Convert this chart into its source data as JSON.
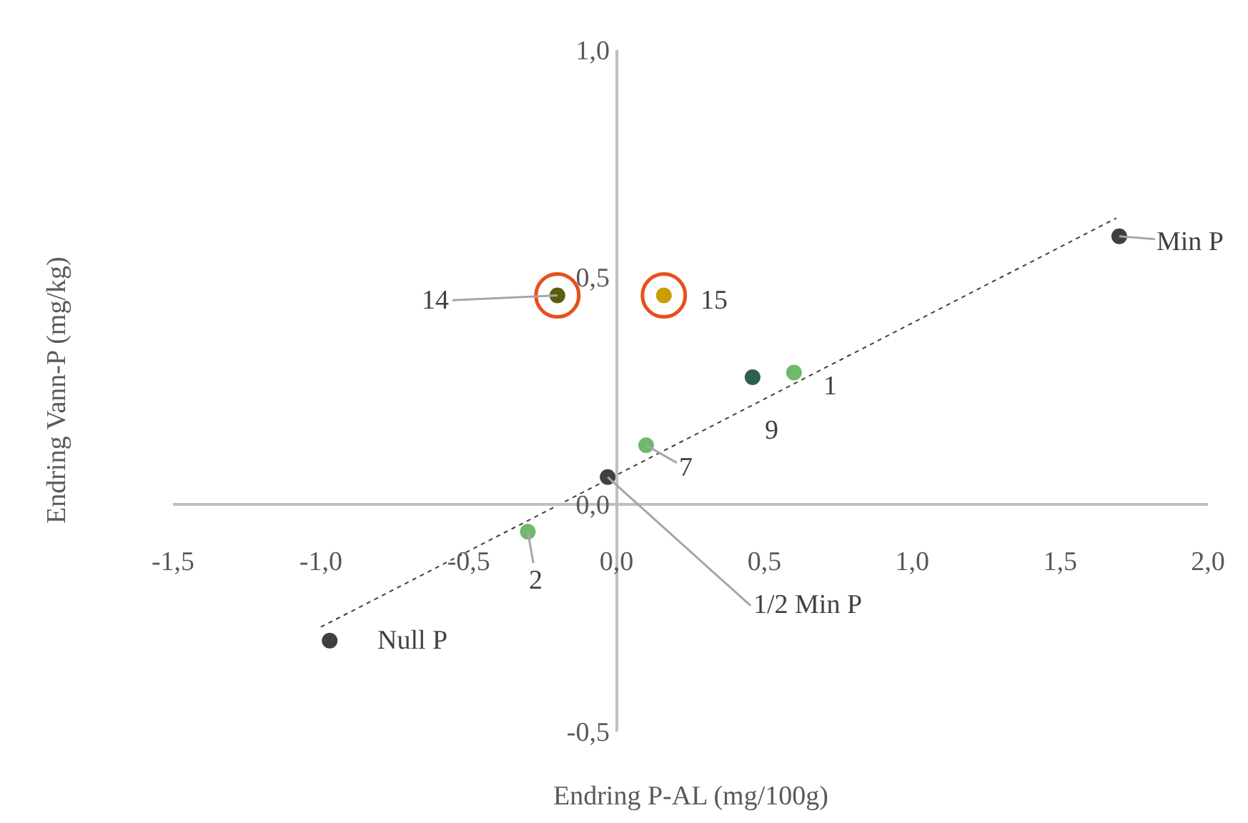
{
  "chart_data": {
    "type": "scatter",
    "xlabel": "Endring P-AL (mg/100g)",
    "ylabel": "Endring Vann-P (mg/kg)",
    "xlim": [
      -1.5,
      2.0
    ],
    "ylim": [
      -0.5,
      1.0
    ],
    "xticks": [
      {
        "value": -1.5,
        "label": "-1,5"
      },
      {
        "value": -1.0,
        "label": "-1,0"
      },
      {
        "value": -0.5,
        "label": "-0,5"
      },
      {
        "value": 0,
        "label": "0,0"
      },
      {
        "value": 0.5,
        "label": "0,5"
      },
      {
        "value": 1.0,
        "label": "1,0"
      },
      {
        "value": 1.5,
        "label": "1,5"
      },
      {
        "value": 2.0,
        "label": "2,0"
      }
    ],
    "yticks": [
      {
        "value": -0.5,
        "label": "-0,5"
      },
      {
        "value": 0,
        "label": "0,0"
      },
      {
        "value": 0.5,
        "label": "0,5"
      },
      {
        "value": 1.0,
        "label": "1,0"
      }
    ],
    "marker": "circle",
    "series": [
      {
        "type": "line",
        "line_style": "dotted",
        "marker": "none",
        "color": "#404040",
        "x": [
          -1.0,
          1.69
        ],
        "values": [
          -0.27,
          0.63
        ]
      },
      {
        "color": "#e8501a",
        "marker": "circle-open",
        "x": [
          -0.2,
          0.16
        ],
        "values": [
          0.46,
          0.46
        ]
      },
      {
        "colors": [
          "#404040",
          "#70b86b",
          "#404040",
          "#70b86b",
          "#2e5e53",
          "#70b86b",
          "#5c5c10",
          "#c9a000",
          "#404040"
        ],
        "x": [
          -0.97,
          -0.3,
          -0.03,
          0.1,
          0.46,
          0.6,
          -0.2,
          0.16,
          1.7
        ],
        "values": [
          -0.3,
          -0.06,
          0.06,
          0.13,
          0.28,
          0.29,
          0.46,
          0.46,
          0.59
        ]
      }
    ],
    "annotations": [
      {
        "text": "Null P",
        "x": -0.97,
        "y": -0.3
      },
      {
        "text": "2",
        "x": -0.3,
        "y": -0.06
      },
      {
        "text": "1/2 Min P",
        "x": -0.03,
        "y": 0.06
      },
      {
        "text": "7",
        "x": 0.1,
        "y": 0.13
      },
      {
        "text": "9",
        "x": 0.46,
        "y": 0.28
      },
      {
        "text": "1",
        "x": 0.6,
        "y": 0.29
      },
      {
        "text": "14",
        "x": -0.2,
        "y": 0.46
      },
      {
        "text": "15",
        "x": 0.16,
        "y": 0.46
      },
      {
        "text": "Min P",
        "x": 1.7,
        "y": 0.59
      }
    ]
  }
}
